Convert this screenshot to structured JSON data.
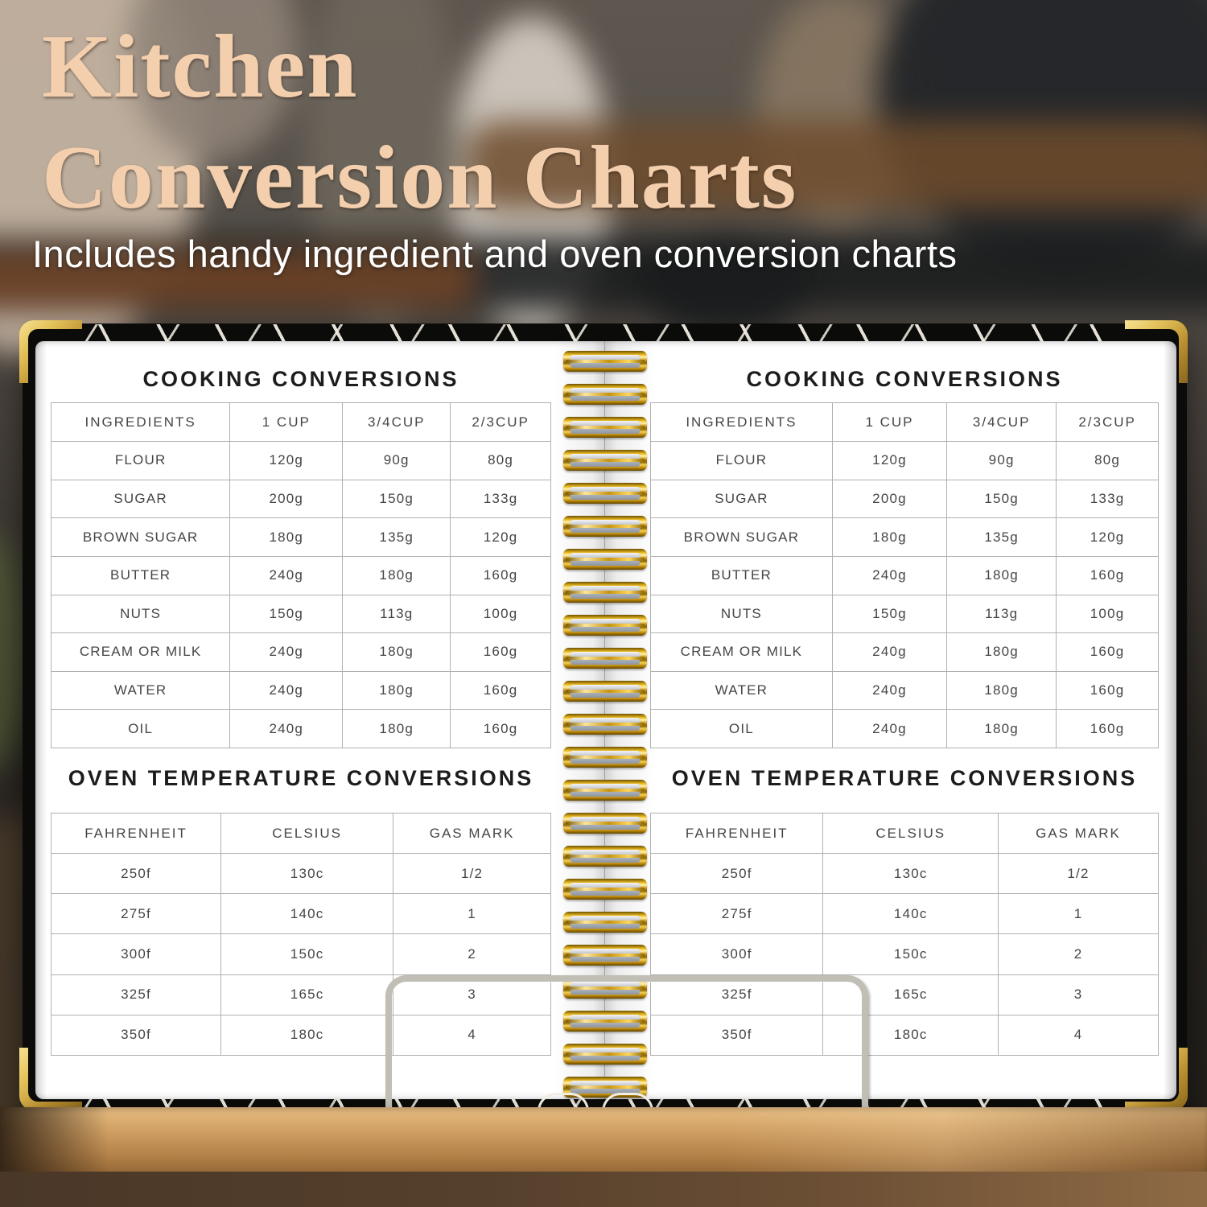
{
  "header": {
    "title_line1": "Kitchen",
    "title_line2": "Conversion Charts",
    "subtitle": "Includes handy ingredient and oven conversion charts"
  },
  "tables": {
    "cooking": {
      "title": "COOKING CONVERSIONS",
      "columns": [
        "INGREDIENTS",
        "1 CUP",
        "3/4CUP",
        "2/3CUP"
      ],
      "rows": [
        [
          "FLOUR",
          "120g",
          "90g",
          "80g"
        ],
        [
          "SUGAR",
          "200g",
          "150g",
          "133g"
        ],
        [
          "BROWN SUGAR",
          "180g",
          "135g",
          "120g"
        ],
        [
          "BUTTER",
          "240g",
          "180g",
          "160g"
        ],
        [
          "NUTS",
          "150g",
          "113g",
          "100g"
        ],
        [
          "CREAM OR MILK",
          "240g",
          "180g",
          "160g"
        ],
        [
          "WATER",
          "240g",
          "180g",
          "160g"
        ],
        [
          "OIL",
          "240g",
          "180g",
          "160g"
        ]
      ]
    },
    "oven": {
      "title": "OVEN TEMPERATURE CONVERSIONS",
      "columns": [
        "FAHRENHEIT",
        "CELSIUS",
        "GAS MARK"
      ],
      "rows": [
        [
          "250f",
          "130c",
          "1/2"
        ],
        [
          "275f",
          "140c",
          "1"
        ],
        [
          "300f",
          "150c",
          "2"
        ],
        [
          "325f",
          "165c",
          "3"
        ],
        [
          "350f",
          "180c",
          "4"
        ]
      ]
    }
  },
  "colors": {
    "title_text": "#f4cfae",
    "subtitle_text": "#ffffff",
    "cover": "#0b0b0a",
    "spiral_gold": "#d4af37",
    "corner_gold": "#e3c159",
    "table_line": "#b0b0b0",
    "table_text": "#454545",
    "wood_stand": "#c79a5f"
  }
}
